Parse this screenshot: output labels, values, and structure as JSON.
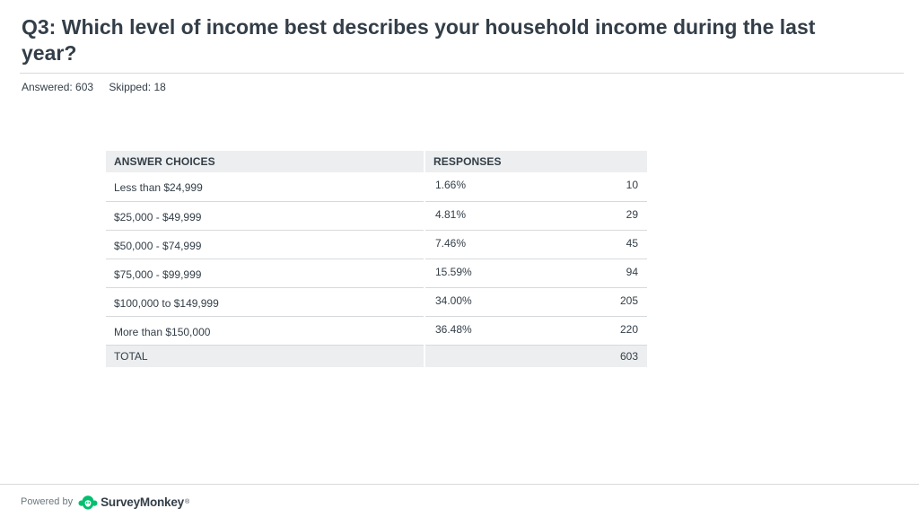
{
  "question": {
    "title": "Q3: Which level of income best describes your household income during the last year?",
    "answered_label": "Answered: 603",
    "skipped_label": "Skipped: 18"
  },
  "chart_data": {
    "type": "table",
    "columns": [
      "ANSWER CHOICES",
      "RESPONSES"
    ],
    "rows": [
      {
        "choice": "Less than $24,999",
        "percent": "1.66%",
        "count": 10
      },
      {
        "choice": "$25,000 - $49,999",
        "percent": "4.81%",
        "count": 29
      },
      {
        "choice": "$50,000 - $74,999",
        "percent": "7.46%",
        "count": 45
      },
      {
        "choice": "$75,000 - $99,999",
        "percent": "15.59%",
        "count": 94
      },
      {
        "choice": "$100,000 to $149,999",
        "percent": "34.00%",
        "count": 205
      },
      {
        "choice": "More than $150,000",
        "percent": "36.48%",
        "count": 220
      }
    ],
    "total_label": "TOTAL",
    "total": 603
  },
  "footer": {
    "powered_by": "Powered by",
    "brand": "SurveyMonkey",
    "trademark": "®",
    "logo_icon": "surveymonkey-logo-icon",
    "brand_color": "#00bf6f"
  }
}
